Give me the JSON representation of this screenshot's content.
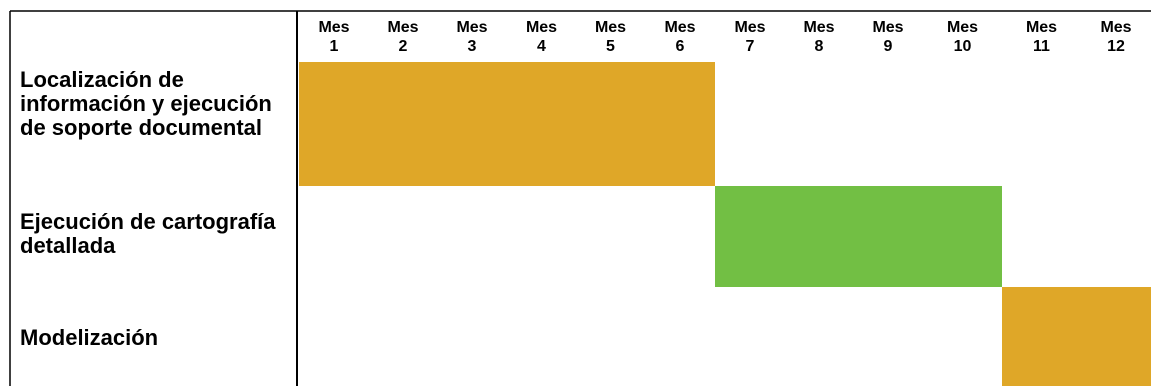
{
  "chart_data": {
    "type": "gantt",
    "categories": [
      "Mes 1",
      "Mes 2",
      "Mes 3",
      "Mes 4",
      "Mes 5",
      "Mes 6",
      "Mes 7",
      "Mes 8",
      "Mes 9",
      "Mes 10",
      "Mes 11",
      "Mes 12"
    ],
    "tasks": [
      {
        "label": "Localización de información y ejecución de soporte documental",
        "start_month": 1,
        "end_month": 6,
        "color": "#DFA728"
      },
      {
        "label": "Ejecución de cartografía detallada",
        "start_month": 7,
        "end_month": 10,
        "color": "#72BF44"
      },
      {
        "label": "Modelización",
        "start_month": 11,
        "end_month": 12,
        "color": "#DFA728"
      }
    ]
  }
}
